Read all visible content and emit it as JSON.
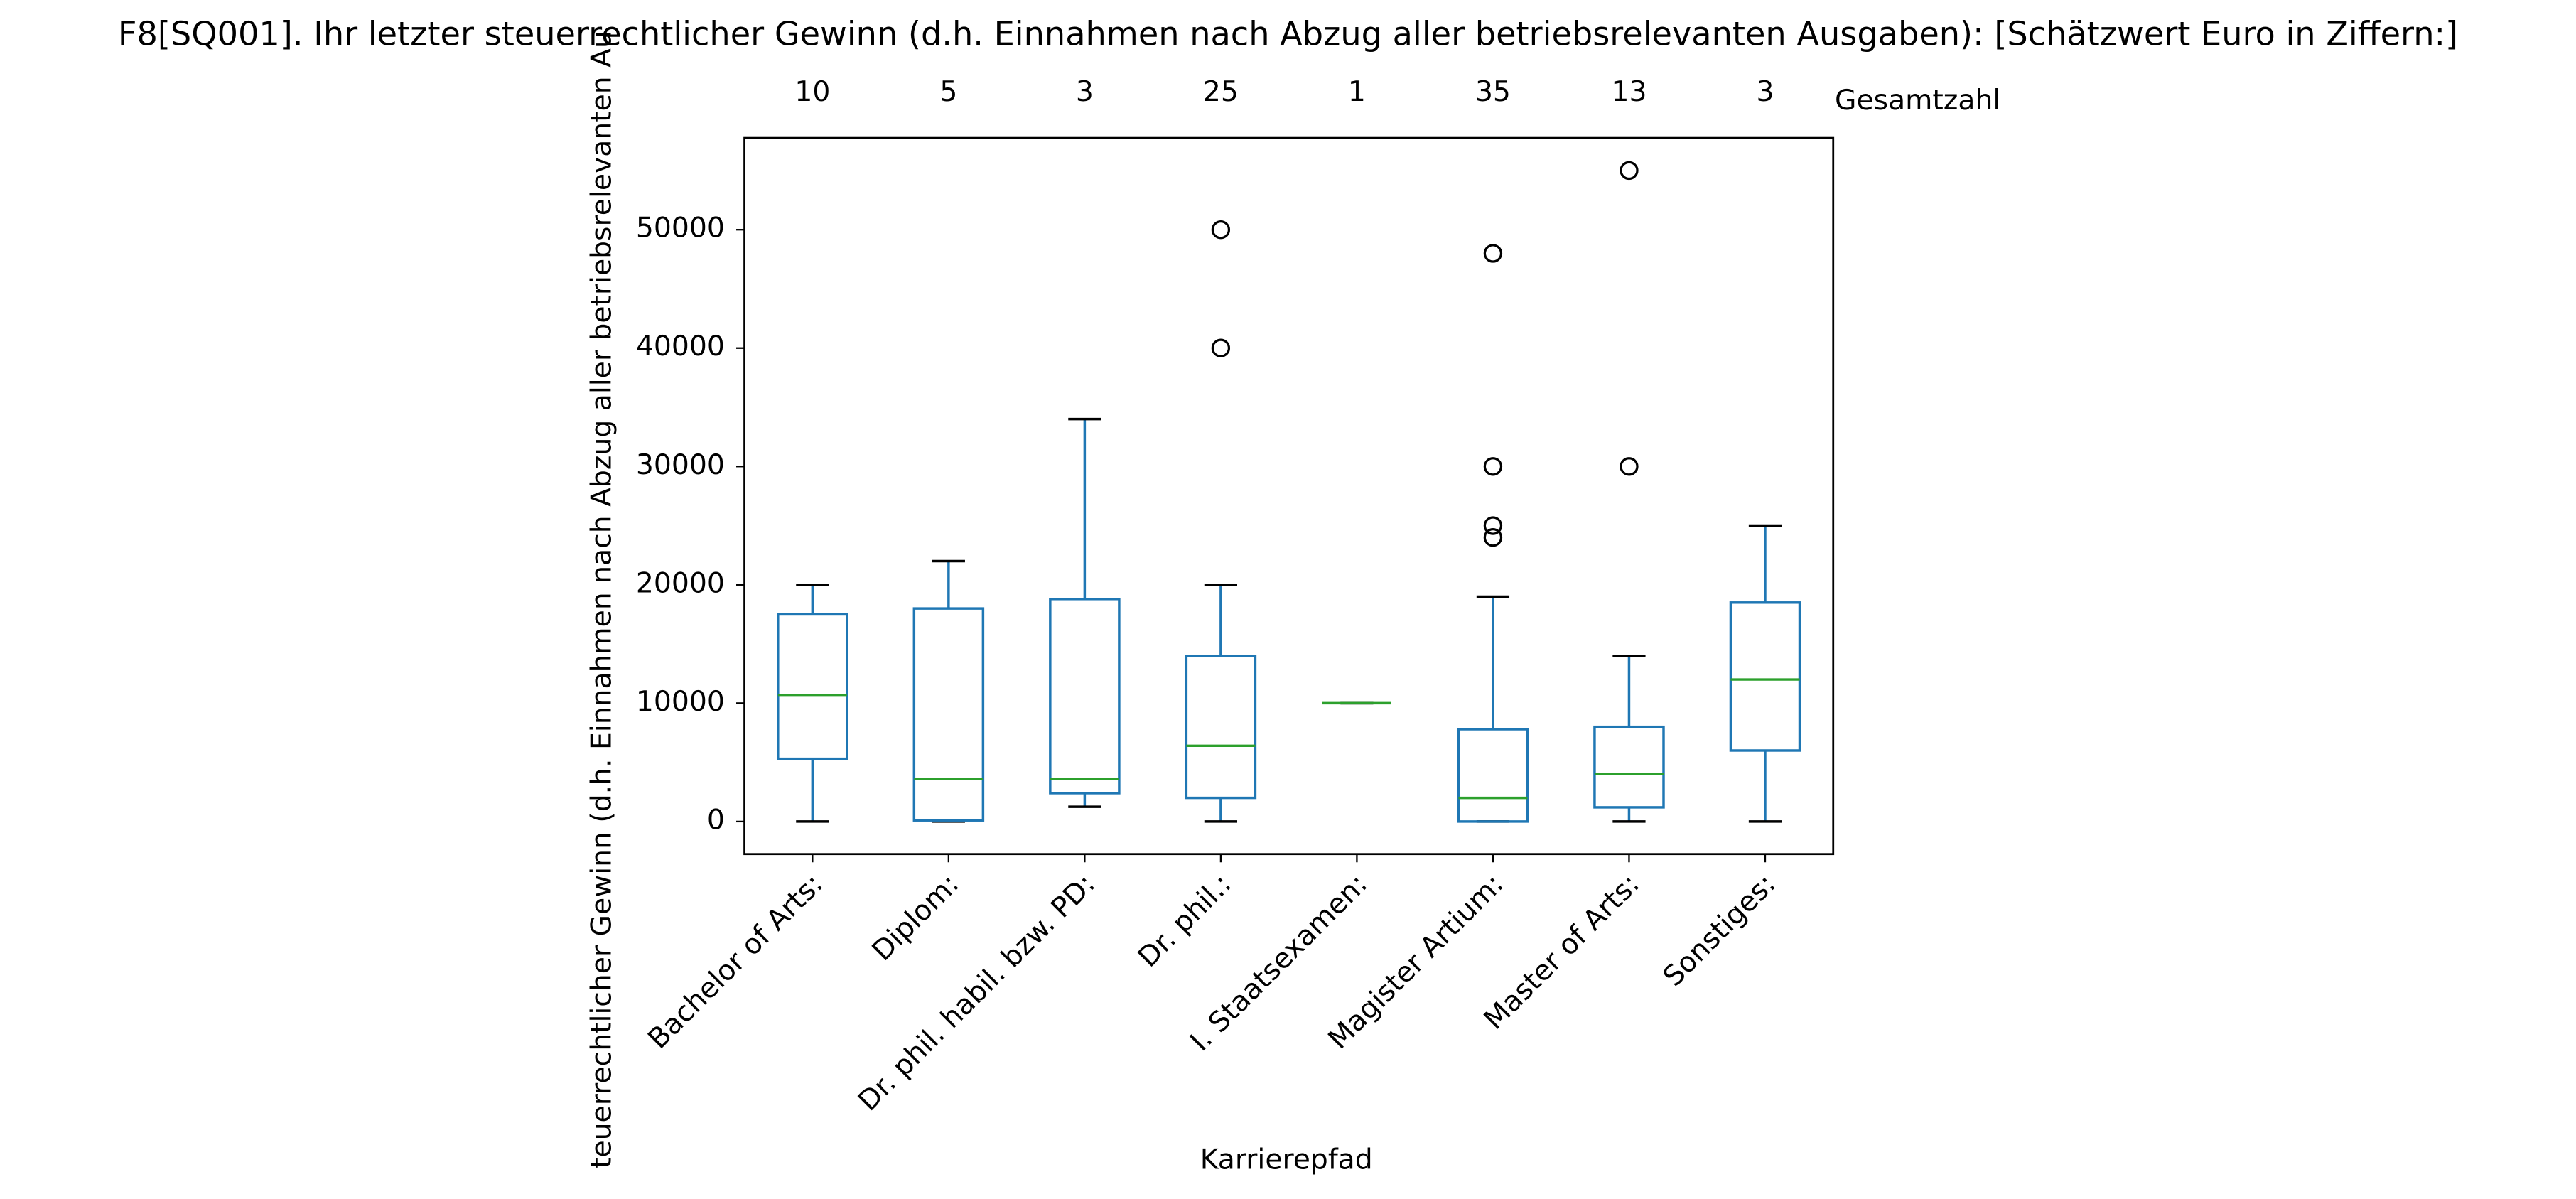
{
  "chart_data": {
    "type": "box",
    "title": "F8[SQ001]. Ihr letzter steuerrechtlicher Gewinn (d.h. Einnahmen nach Abzug aller betriebsrelevanten Ausgaben): [Schätzwert Euro in Ziffern:]",
    "xlabel": "Karrierepfad",
    "ylabel": "teuerrechtlicher Gewinn (d.h. Einnahmen nach Abzug aller betriebsrelevanten Au",
    "categories": [
      "Bachelor of Arts:",
      "Diplom:",
      "Dr. phil. habil. bzw. PD:",
      "Dr. phil.:",
      "I. Staatsexamen:",
      "Magister Artium:",
      "Master of Arts:",
      "Sonstiges:"
    ],
    "counts_label": "Gesamtzahl",
    "counts": [
      10,
      5,
      3,
      25,
      1,
      35,
      13,
      3
    ],
    "boxes": [
      {
        "whislo": 0,
        "q1": 5300,
        "med": 10700,
        "q3": 17500,
        "whishi": 20000,
        "fliers": []
      },
      {
        "whislo": 0,
        "q1": 100,
        "med": 3600,
        "q3": 18000,
        "whishi": 22000,
        "fliers": []
      },
      {
        "whislo": 1250,
        "q1": 2400,
        "med": 3600,
        "q3": 18800,
        "whishi": 34000,
        "fliers": []
      },
      {
        "whislo": 0,
        "q1": 2000,
        "med": 6400,
        "q3": 14000,
        "whishi": 20000,
        "fliers": [
          40000,
          50000
        ]
      },
      {
        "whislo": 10000,
        "q1": 10000,
        "med": 10000,
        "q3": 10000,
        "whishi": 10000,
        "fliers": []
      },
      {
        "whislo": 0,
        "q1": 0,
        "med": 2000,
        "q3": 7800,
        "whishi": 19000,
        "fliers": [
          24000,
          25000,
          30000,
          48000
        ]
      },
      {
        "whislo": 0,
        "q1": 1200,
        "med": 4000,
        "q3": 8000,
        "whishi": 14000,
        "fliers": [
          30000,
          55000
        ]
      },
      {
        "whislo": 0,
        "q1": 6000,
        "med": 12000,
        "q3": 18500,
        "whishi": 25000,
        "fliers": []
      }
    ],
    "box_color": "#1f77b4",
    "median_color": "#2ca02c",
    "cap_color": "#000000",
    "flier_color": "#000000",
    "ylim": [
      -2750,
      57750
    ],
    "yticks": [
      0,
      10000,
      20000,
      30000,
      40000,
      50000
    ],
    "grid": false
  }
}
